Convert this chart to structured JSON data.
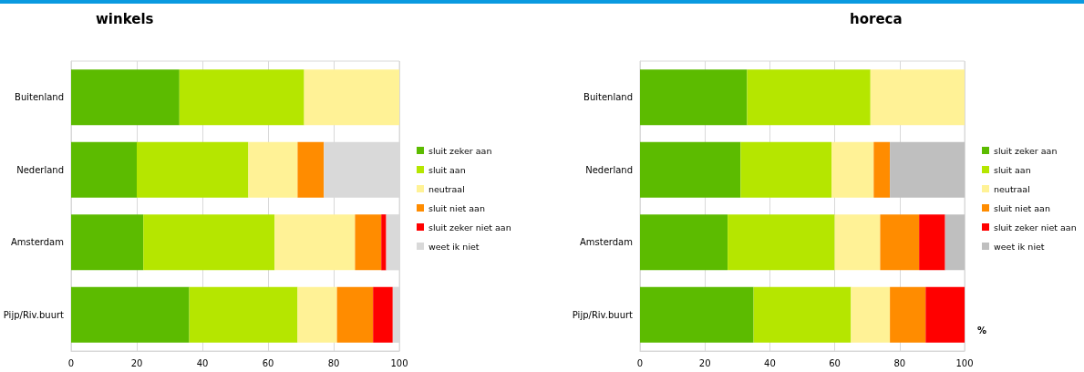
{
  "chart_data": [
    {
      "type": "bar",
      "title": "winkels",
      "orientation": "horizontal",
      "stacked": true,
      "categories": [
        "Buitenland",
        "Nederland",
        "Amsterdam",
        "Pijp/Riv.buurt"
      ],
      "xlim": [
        0,
        100
      ],
      "xticks": [
        0,
        20,
        40,
        60,
        80,
        100
      ],
      "grid": "x",
      "legend": "right",
      "series": [
        {
          "name": "sluit zeker aan",
          "color": "#5cbb00",
          "values": [
            33,
            20,
            22,
            36
          ]
        },
        {
          "name": "sluit aan",
          "color": "#b5e600",
          "values": [
            38,
            34,
            40,
            33
          ]
        },
        {
          "name": "neutraal",
          "color": "#fff296",
          "values": [
            29,
            15,
            24.5,
            12
          ]
        },
        {
          "name": "sluit niet aan",
          "color": "#ff8c00",
          "values": [
            0,
            8,
            8,
            11
          ]
        },
        {
          "name": "sluit zeker niet aan",
          "color": "#ff0000",
          "values": [
            0,
            0,
            1.5,
            6
          ]
        },
        {
          "name": "weet ik niet",
          "color": "#d9d9d9",
          "values": [
            0,
            23,
            4,
            2
          ]
        }
      ]
    },
    {
      "type": "bar",
      "title": "horeca",
      "xlabel": "%",
      "orientation": "horizontal",
      "stacked": true,
      "categories": [
        "Buitenland",
        "Nederland",
        "Amsterdam",
        "Pijp/Riv.buurt"
      ],
      "xlim": [
        0,
        100
      ],
      "xticks": [
        0,
        20,
        40,
        60,
        80,
        100
      ],
      "grid": "x",
      "legend": "right",
      "series": [
        {
          "name": "sluit zeker aan",
          "color": "#5cbb00",
          "values": [
            33,
            31,
            27,
            35
          ]
        },
        {
          "name": "sluit aan",
          "color": "#b5e600",
          "values": [
            38,
            28,
            33,
            30
          ]
        },
        {
          "name": "neutraal",
          "color": "#fff296",
          "values": [
            29,
            13,
            14,
            12
          ]
        },
        {
          "name": "sluit niet aan",
          "color": "#ff8c00",
          "values": [
            0,
            5,
            12,
            11
          ]
        },
        {
          "name": "sluit zeker niet aan",
          "color": "#ff0000",
          "values": [
            0,
            0,
            8,
            12
          ]
        },
        {
          "name": "weet ik niet",
          "color": "#bfbfbf",
          "values": [
            0,
            23,
            6,
            0
          ]
        }
      ]
    }
  ]
}
